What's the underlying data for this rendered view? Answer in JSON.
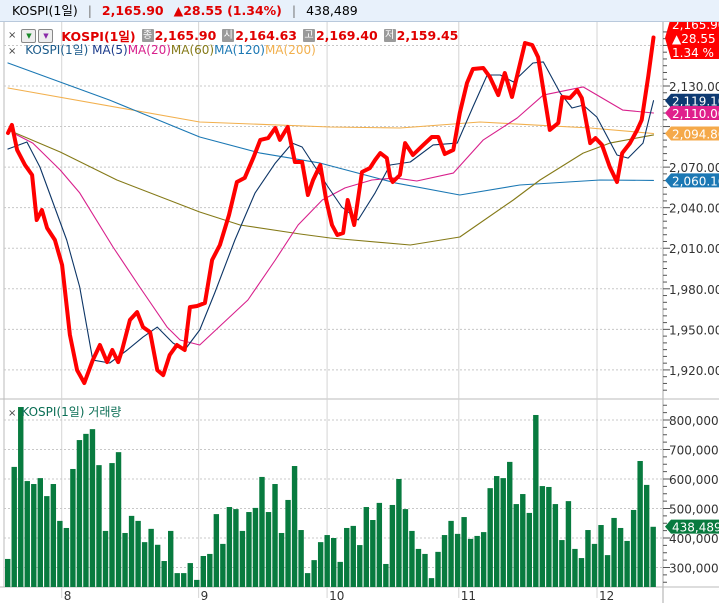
{
  "header": {
    "symbol": "KOSPI(1일)",
    "price": "2,165.90",
    "change": "▲28.55 (1.34%)",
    "volume": "438,489"
  },
  "legend": {
    "close_x": "×",
    "name": "KOSPI(1일)",
    "close_badge": "종",
    "close_value": "2,165.90",
    "open_badge": "시",
    "open_value": "2,164.63",
    "high_badge": "고",
    "high_value": "2,169.40",
    "low_badge": "저",
    "low_value": "2,159.45",
    "ma_name": "KOSPI(1일)",
    "ma_labels": [
      "MA(5)",
      "MA(20)",
      "MA(60)",
      "MA(120)",
      "MA(200)"
    ]
  },
  "volume_legend": {
    "close_x": "×",
    "label": "KOSPI(1일) 거래량"
  },
  "colors": {
    "price": "#ff0000",
    "ma5": "#0d3566",
    "ma20": "#d8208c",
    "ma60": "#857a18",
    "ma120": "#1b78b4",
    "ma200": "#f2b04e",
    "volume": "#087b3f"
  },
  "tags": {
    "last_price": "2,165.90",
    "last_change": "▲28.55",
    "last_pct": "1.34 %",
    "ma5": "2,119.10",
    "ma20": "2,110.00",
    "ma200": "2,094.86",
    "ma120": "2,060.16",
    "volume": "438,489"
  },
  "chart_data": [
    {
      "type": "line",
      "title": "KOSPI(1일)",
      "x_unit": "bar index (0-99)",
      "ylim": [
        1900,
        2175
      ],
      "y_ticks": [
        2130,
        2070,
        2040,
        2010,
        1980,
        1950,
        1920
      ],
      "y_tick_labels": [
        "2,130.00",
        "2,070.00",
        "2,040.00",
        "2,010.00",
        "1,980.00",
        "1,950.00",
        "1,920.00"
      ],
      "series": [
        {
          "name": "KOSPI(1일)",
          "key": "price",
          "points": [
            [
              0,
              2095.2
            ],
            [
              0.6,
              2101.2
            ],
            [
              1.4,
              2082.7
            ],
            [
              2.6,
              2071.6
            ],
            [
              3.7,
              2064.2
            ],
            [
              4.4,
              2030.9
            ],
            [
              5.2,
              2038.3
            ],
            [
              6,
              2025
            ],
            [
              7.2,
              2016.1
            ],
            [
              8.3,
              1997.6
            ],
            [
              9.5,
              1945.9
            ],
            [
              10.6,
              1919.9
            ],
            [
              11.7,
              1910.3
            ],
            [
              13,
              1927.3
            ],
            [
              14.1,
              1938.4
            ],
            [
              15.2,
              1925.8
            ],
            [
              16,
              1934.7
            ],
            [
              16.9,
              1925.8
            ],
            [
              17.5,
              1934.7
            ],
            [
              18.7,
              1956.9
            ],
            [
              19.8,
              1962.8
            ],
            [
              20.7,
              1951.7
            ],
            [
              21.8,
              1948
            ],
            [
              22.9,
              1919.9
            ],
            [
              23.8,
              1916.2
            ],
            [
              24.8,
              1931
            ],
            [
              25.9,
              1938.4
            ],
            [
              27.1,
              1934.7
            ],
            [
              27.9,
              1966.5
            ],
            [
              29,
              1967.3
            ],
            [
              30.2,
              1969.5
            ],
            [
              31.3,
              2001.3
            ],
            [
              32.5,
              2012.4
            ],
            [
              33.9,
              2034.6
            ],
            [
              35.1,
              2059
            ],
            [
              36.3,
              2062
            ],
            [
              37.6,
              2076.7
            ],
            [
              38.7,
              2090.1
            ],
            [
              39.9,
              2091.5
            ],
            [
              41,
              2098.9
            ],
            [
              41.7,
              2090.1
            ],
            [
              42.9,
              2099.7
            ],
            [
              44,
              2073.8
            ],
            [
              45.1,
              2073.8
            ],
            [
              46,
              2049.4
            ],
            [
              46.8,
              2060.5
            ],
            [
              47.9,
              2071.6
            ],
            [
              48.8,
              2045.7
            ],
            [
              49.7,
              2027.2
            ],
            [
              50.5,
              2019.8
            ],
            [
              51.4,
              2021.3
            ],
            [
              52.1,
              2045.7
            ],
            [
              53.1,
              2027.2
            ],
            [
              54.3,
              2066.4
            ],
            [
              55.5,
              2069.3
            ],
            [
              56.3,
              2075.3
            ],
            [
              57.1,
              2080.4
            ],
            [
              58.1,
              2076.7
            ],
            [
              58.6,
              2062.7
            ],
            [
              59,
              2059
            ],
            [
              60.1,
              2064.2
            ],
            [
              60.9,
              2087.8
            ],
            [
              62.1,
              2079
            ],
            [
              63.7,
              2086.4
            ],
            [
              65,
              2092.3
            ],
            [
              66,
              2092.3
            ],
            [
              67,
              2079.7
            ],
            [
              68.3,
              2082.7
            ],
            [
              69.3,
              2110
            ],
            [
              70.4,
              2132.2
            ],
            [
              71.3,
              2142.6
            ],
            [
              72.9,
              2143.3
            ],
            [
              73.9,
              2136.7
            ],
            [
              75.2,
              2123.3
            ],
            [
              76.2,
              2139.6
            ],
            [
              77.3,
              2121.9
            ],
            [
              79.3,
              2161.8
            ],
            [
              80.4,
              2160.3
            ],
            [
              81.3,
              2151.4
            ],
            [
              83.1,
              2097.5
            ],
            [
              84.4,
              2102.6
            ],
            [
              85,
              2121.9
            ],
            [
              86.2,
              2121.1
            ],
            [
              87.3,
              2127
            ],
            [
              88,
              2121.1
            ],
            [
              89.3,
              2087.8
            ],
            [
              90.1,
              2091.5
            ],
            [
              91.1,
              2086.4
            ],
            [
              92.3,
              2070.1
            ],
            [
              93.4,
              2059
            ],
            [
              94.2,
              2080.4
            ],
            [
              95.4,
              2087.8
            ],
            [
              96.5,
              2097.5
            ],
            [
              97.2,
              2104.9
            ],
            [
              98.2,
              2137.35
            ],
            [
              99,
              2165.9
            ]
          ]
        },
        {
          "name": "MA(5)",
          "key": "ma5",
          "points": [
            [
              0,
              2083.4
            ],
            [
              2.9,
              2088.6
            ],
            [
              4.9,
              2070.1
            ],
            [
              9,
              2016.1
            ],
            [
              11,
              1981.3
            ],
            [
              13,
              1927.3
            ],
            [
              15.6,
              1925.1
            ],
            [
              18.3,
              1934.7
            ],
            [
              20.7,
              1944.3
            ],
            [
              22.9,
              1951.7
            ],
            [
              25.3,
              1939.9
            ],
            [
              27.1,
              1934.7
            ],
            [
              29.4,
              1949.5
            ],
            [
              31.7,
              1976.9
            ],
            [
              34.8,
              2016.1
            ],
            [
              37.9,
              2050.9
            ],
            [
              41,
              2073
            ],
            [
              43.6,
              2087.8
            ],
            [
              45.1,
              2084.9
            ],
            [
              47.1,
              2070.1
            ],
            [
              49.1,
              2055.3
            ],
            [
              51.2,
              2040.5
            ],
            [
              53.7,
              2030.9
            ],
            [
              56.3,
              2050.9
            ],
            [
              58.6,
              2071.6
            ],
            [
              61.7,
              2073.8
            ],
            [
              65.2,
              2086.4
            ],
            [
              68.9,
              2087.8
            ],
            [
              71.3,
              2114.5
            ],
            [
              73.5,
              2138.1
            ],
            [
              75.5,
              2138.1
            ],
            [
              77.5,
              2133
            ],
            [
              80.5,
              2147
            ],
            [
              82.1,
              2147.8
            ],
            [
              84.7,
              2124.8
            ],
            [
              86.5,
              2113.7
            ],
            [
              88.2,
              2115.9
            ],
            [
              90.3,
              2107.1
            ],
            [
              93.4,
              2079
            ],
            [
              95.1,
              2076.7
            ],
            [
              97.4,
              2087.8
            ],
            [
              99,
              2119.1
            ]
          ]
        },
        {
          "name": "MA(20)",
          "key": "ma20",
          "points": [
            [
              0.8,
              2095.2
            ],
            [
              3.8,
              2087.8
            ],
            [
              8,
              2067.9
            ],
            [
              11,
              2050.9
            ],
            [
              16.1,
              2010.9
            ],
            [
              20.2,
              1981.3
            ],
            [
              24.4,
              1951.7
            ],
            [
              26.4,
              1942.1
            ],
            [
              29.4,
              1938.4
            ],
            [
              36.8,
              1971.7
            ],
            [
              41,
              2001.3
            ],
            [
              44.5,
              2027.2
            ],
            [
              48.2,
              2045.7
            ],
            [
              51.7,
              2054.6
            ],
            [
              55.8,
              2060.5
            ],
            [
              59.4,
              2062
            ],
            [
              62.7,
              2059.7
            ],
            [
              68.3,
              2065.6
            ],
            [
              72.9,
              2090.1
            ],
            [
              78.1,
              2106.3
            ],
            [
              82.1,
              2123.3
            ],
            [
              88.2,
              2129.3
            ],
            [
              94.3,
              2112.2
            ],
            [
              99,
              2110
            ]
          ]
        },
        {
          "name": "MA(60)",
          "key": "ma60",
          "points": [
            [
              0,
              2097.5
            ],
            [
              8,
              2081.2
            ],
            [
              16.7,
              2060.5
            ],
            [
              29.4,
              2036.8
            ],
            [
              35.6,
              2027.2
            ],
            [
              44.8,
              2020.5
            ],
            [
              49.4,
              2017.6
            ],
            [
              61.7,
              2012.4
            ],
            [
              69.3,
              2018.3
            ],
            [
              77.5,
              2045.7
            ],
            [
              81.6,
              2060.5
            ],
            [
              88.2,
              2080.4
            ],
            [
              92.3,
              2087.8
            ],
            [
              99,
              2093.8
            ]
          ]
        },
        {
          "name": "MA(120)",
          "key": "ma120",
          "points": [
            [
              0,
              2147
            ],
            [
              15.6,
              2119.6
            ],
            [
              29.4,
              2092.3
            ],
            [
              38.7,
              2080.4
            ],
            [
              47.9,
              2073
            ],
            [
              59.4,
              2058.3
            ],
            [
              69.3,
              2049.4
            ],
            [
              78.5,
              2056.8
            ],
            [
              90.8,
              2060.5
            ],
            [
              99,
              2060.16
            ]
          ]
        },
        {
          "name": "MA(200)",
          "key": "ma200",
          "points": [
            [
              0,
              2128.5
            ],
            [
              29.4,
              2103.4
            ],
            [
              49.4,
              2099.7
            ],
            [
              60.1,
              2098.9
            ],
            [
              72.4,
              2103.4
            ],
            [
              89.3,
              2098.9
            ],
            [
              99,
              2094.86
            ]
          ]
        }
      ]
    },
    {
      "type": "bar",
      "title": "KOSPI(1일) 거래량",
      "x_unit": "bar index (0-99)",
      "unit": "thousand shares",
      "ylim": [
        236,
        850
      ],
      "y_ticks": [
        800,
        700,
        600,
        500,
        400,
        300
      ],
      "y_tick_labels": [
        "800,000",
        "700,000",
        "600,000",
        "500,000",
        "400,000",
        "300,000"
      ],
      "x_tick_labels": [
        {
          "label": "8",
          "index": 8.7
        },
        {
          "label": "9",
          "index": 29.7
        },
        {
          "label": "10",
          "index": 49.4
        },
        {
          "label": "11",
          "index": 69.6
        },
        {
          "label": "12",
          "index": 90.8
        }
      ],
      "values": [
        329,
        641,
        844,
        593,
        583,
        603,
        542,
        583,
        458,
        434,
        634,
        732,
        753,
        769,
        647,
        424,
        654,
        691,
        417,
        475,
        458,
        386,
        431,
        377,
        322,
        424,
        281,
        281,
        315,
        258,
        339,
        346,
        481,
        380,
        505,
        498,
        424,
        488,
        502,
        607,
        488,
        583,
        417,
        529,
        644,
        427,
        281,
        325,
        386,
        410,
        400,
        319,
        434,
        441,
        376,
        505,
        461,
        519,
        312,
        512,
        600,
        498,
        424,
        363,
        346,
        264,
        353,
        410,
        458,
        414,
        471,
        397,
        407,
        420,
        569,
        610,
        603,
        658,
        515,
        549,
        485,
        817,
        576,
        573,
        515,
        393,
        525,
        363,
        332,
        427,
        380,
        444,
        342,
        468,
        434,
        390,
        495,
        661,
        580,
        438
      ]
    }
  ]
}
